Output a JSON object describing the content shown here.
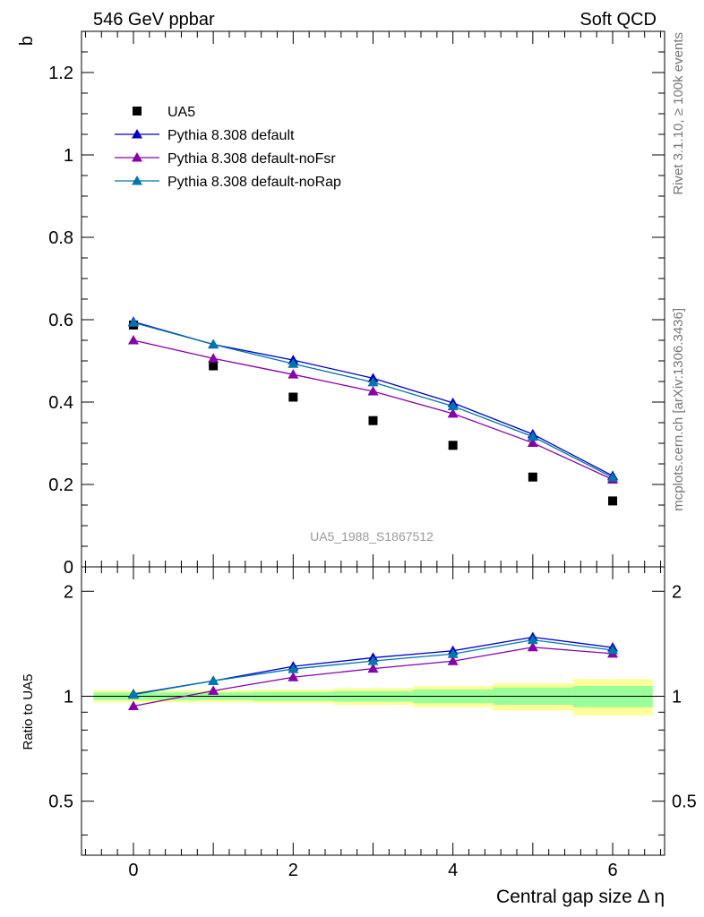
{
  "header": {
    "left": "546 GeV ppbar",
    "right": "Soft QCD"
  },
  "side_labels": {
    "rivet": "Rivet 3.1.10, ≥ 100k events",
    "mcplots": "mcplots.cern.ch [arXiv:1306.3436]"
  },
  "watermark": "UA5_1988_S1867512",
  "colors": {
    "ua5": "#000000",
    "default": "#0000cc",
    "noFsr": "#8800aa",
    "noRap": "#0077aa",
    "band_inner": "#99ff99",
    "band_outer": "#ffff99"
  },
  "chart_data": [
    {
      "type": "line",
      "ylabel": "b",
      "xlabel": "Central gap size Δ η",
      "xlim": [
        -0.65,
        6.65
      ],
      "ylim": [
        0,
        1.3
      ],
      "xticks": [
        "0",
        "2",
        "4",
        "6"
      ],
      "yticks": [
        "0",
        "0.2",
        "0.4",
        "0.6",
        "0.8",
        "1",
        "1.2"
      ],
      "x": [
        0,
        1,
        2,
        3,
        4,
        5,
        6
      ],
      "legend": {
        "position": "top-left",
        "entries": [
          "UA5",
          "Pythia 8.308 default",
          "Pythia 8.308 default-noFsr",
          "Pythia 8.308 default-noRap"
        ]
      },
      "series": [
        {
          "name": "UA5",
          "marker": "square",
          "values": [
            0.587,
            0.488,
            0.412,
            0.355,
            0.295,
            0.218,
            0.16
          ]
        },
        {
          "name": "Pythia 8.308 default",
          "marker": "triangle",
          "values": [
            0.595,
            0.54,
            0.502,
            0.458,
            0.398,
            0.322,
            0.221
          ]
        },
        {
          "name": "Pythia 8.308 default-noFsr",
          "marker": "triangle",
          "values": [
            0.55,
            0.506,
            0.467,
            0.426,
            0.372,
            0.301,
            0.212
          ]
        },
        {
          "name": "Pythia 8.308 default-noRap",
          "marker": "triangle",
          "values": [
            0.593,
            0.54,
            0.493,
            0.448,
            0.39,
            0.316,
            0.217
          ]
        }
      ]
    },
    {
      "type": "line",
      "ylabel": "Ratio to UA5",
      "xlabel": "Central gap size Δ η",
      "xlim": [
        -0.65,
        6.65
      ],
      "ylim": [
        0.35,
        2.35
      ],
      "xticks": [
        "0",
        "2",
        "4",
        "6"
      ],
      "yticks": [
        "0.5",
        "1",
        "2"
      ],
      "x": [
        0,
        1,
        2,
        3,
        4,
        5,
        6
      ],
      "bands": {
        "inner": [
          [
            0.975,
            1.025
          ],
          [
            0.975,
            1.025
          ],
          [
            0.97,
            1.03
          ],
          [
            0.965,
            1.035
          ],
          [
            0.955,
            1.045
          ],
          [
            0.945,
            1.06
          ],
          [
            0.93,
            1.07
          ]
        ],
        "outer": [
          [
            0.96,
            1.04
          ],
          [
            0.96,
            1.04
          ],
          [
            0.955,
            1.045
          ],
          [
            0.945,
            1.055
          ],
          [
            0.93,
            1.07
          ],
          [
            0.91,
            1.09
          ],
          [
            0.88,
            1.12
          ]
        ]
      },
      "series": [
        {
          "name": "Pythia 8.308 default",
          "values": [
            1.015,
            1.107,
            1.218,
            1.29,
            1.35,
            1.477,
            1.38
          ]
        },
        {
          "name": "Pythia 8.308 default-noFsr",
          "values": [
            0.937,
            1.037,
            1.134,
            1.2,
            1.261,
            1.382,
            1.325
          ]
        },
        {
          "name": "Pythia 8.308 default-noRap",
          "values": [
            1.01,
            1.107,
            1.197,
            1.262,
            1.322,
            1.45,
            1.356
          ]
        }
      ]
    }
  ]
}
